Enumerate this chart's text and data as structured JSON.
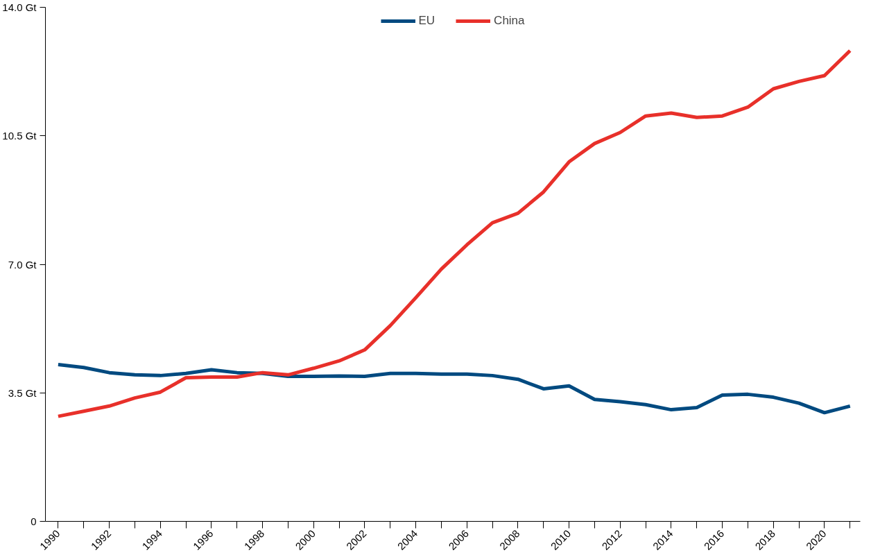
{
  "chart_data": {
    "type": "line",
    "x": [
      1990,
      1991,
      1992,
      1993,
      1994,
      1995,
      1996,
      1997,
      1998,
      1999,
      2000,
      2001,
      2002,
      2003,
      2004,
      2005,
      2006,
      2007,
      2008,
      2009,
      2010,
      2011,
      2012,
      2013,
      2014,
      2015,
      2016,
      2017,
      2018,
      2019,
      2020,
      2021
    ],
    "series": [
      {
        "name": "EU",
        "color": "#004a80",
        "values": [
          4.27,
          4.19,
          4.05,
          3.99,
          3.97,
          4.03,
          4.13,
          4.05,
          4.03,
          3.95,
          3.95,
          3.96,
          3.95,
          4.03,
          4.03,
          4.01,
          4.01,
          3.97,
          3.87,
          3.61,
          3.69,
          3.32,
          3.26,
          3.18,
          3.04,
          3.1,
          3.44,
          3.46,
          3.38,
          3.22,
          2.96,
          3.14
        ]
      },
      {
        "name": "China",
        "color": "#e8302a",
        "values": [
          2.86,
          3.0,
          3.14,
          3.36,
          3.52,
          3.91,
          3.93,
          3.93,
          4.05,
          3.99,
          4.17,
          4.37,
          4.67,
          5.33,
          6.09,
          6.87,
          7.53,
          8.13,
          8.39,
          8.97,
          9.79,
          10.29,
          10.59,
          11.04,
          11.12,
          11.0,
          11.04,
          11.28,
          11.78,
          11.98,
          12.14,
          12.82
        ]
      }
    ],
    "xlim": [
      1989.5,
      2021.4
    ],
    "ylim": [
      0,
      14
    ],
    "xticks": [
      1990,
      {
        "value": 1991,
        "label": null
      },
      1992,
      {
        "value": 1993,
        "label": null
      },
      1994,
      {
        "value": 1995,
        "label": null
      },
      1996,
      {
        "value": 1997,
        "label": null
      },
      1998,
      {
        "value": 1999,
        "label": null
      },
      2000,
      {
        "value": 2001,
        "label": null
      },
      2002,
      {
        "value": 2003,
        "label": null
      },
      2004,
      {
        "value": 2005,
        "label": null
      },
      2006,
      {
        "value": 2007,
        "label": null
      },
      2008,
      {
        "value": 2009,
        "label": null
      },
      2010,
      {
        "value": 2011,
        "label": null
      },
      2012,
      {
        "value": 2013,
        "label": null
      },
      2014,
      {
        "value": 2015,
        "label": null
      },
      2016,
      {
        "value": 2017,
        "label": null
      },
      2018,
      {
        "value": 2019,
        "label": null
      },
      2020,
      {
        "value": 2021,
        "label": null
      }
    ],
    "yticks": [
      0,
      {
        "value": 3.5,
        "label": "3.5 Gt"
      },
      {
        "value": 7,
        "label": "7.0 Gt"
      },
      {
        "value": 10.5,
        "label": "10.5 Gt"
      },
      {
        "value": 14,
        "label": "14.0 Gt"
      }
    ],
    "grid": false,
    "legend": "top",
    "marker": "none",
    "line_style": "solid"
  }
}
